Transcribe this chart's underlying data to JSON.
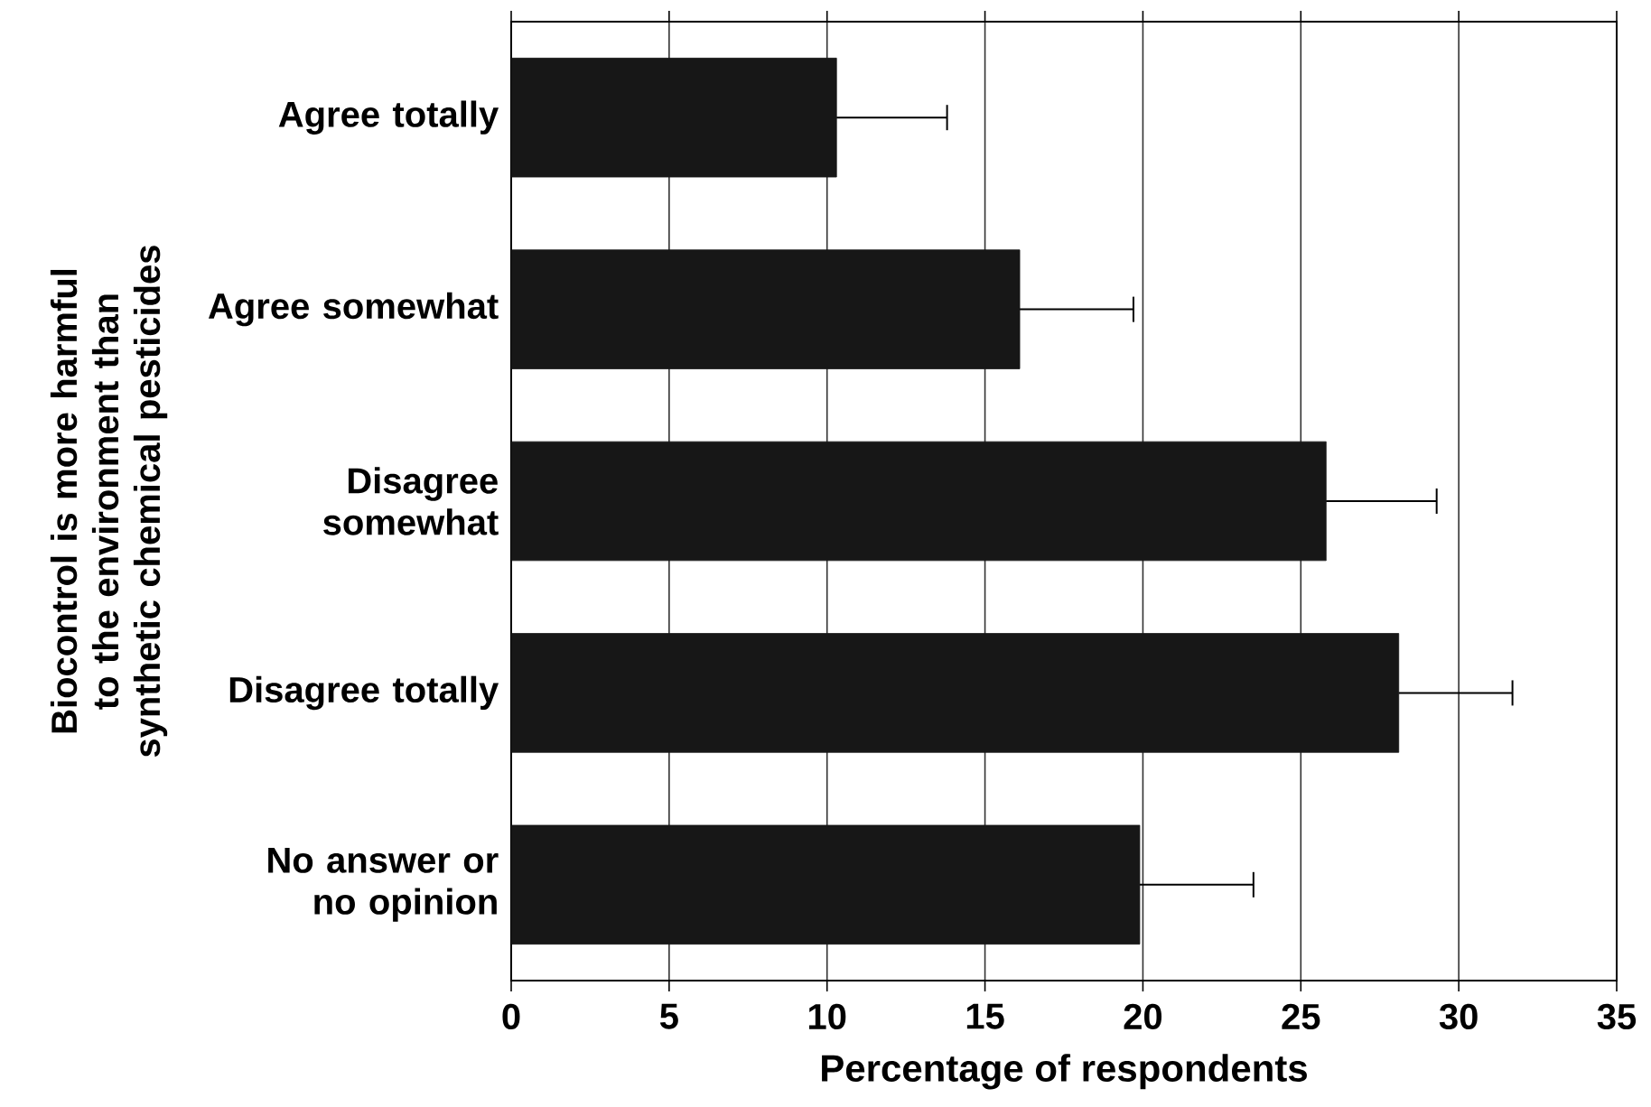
{
  "chart_data": {
    "type": "bar",
    "orientation": "horizontal",
    "xlabel": "Percentage of respondents",
    "ylabel": "Biocontrol is more harmful to the environment than synthetic chemical pesticides",
    "categories": [
      "Agree totally",
      "Agree somewhat",
      "Disagree somewhat",
      "Disagree totally",
      "No answer or no opinion"
    ],
    "values": [
      10.3,
      16.1,
      25.8,
      28.1,
      19.9
    ],
    "errors": [
      [
        10.3,
        13.8
      ],
      [
        16.1,
        19.7
      ],
      [
        25.8,
        29.3
      ],
      [
        28.1,
        31.7
      ],
      [
        19.9,
        23.5
      ]
    ],
    "color": "#171717",
    "xlim": [
      0,
      35
    ],
    "xticks": [
      0,
      5,
      10,
      15,
      20,
      25,
      30,
      35
    ],
    "grid": "x"
  }
}
